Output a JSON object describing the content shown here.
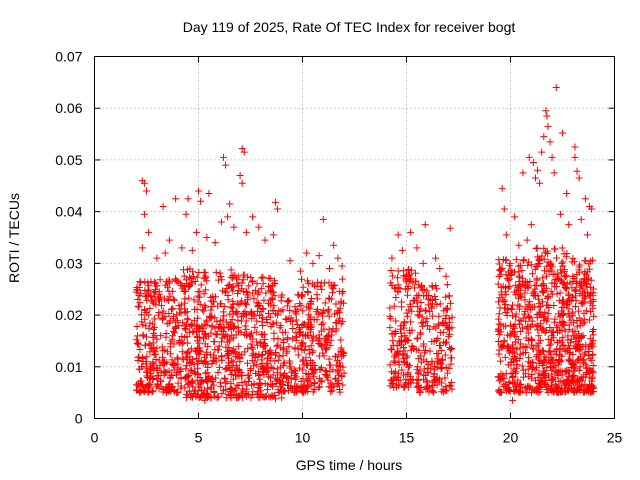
{
  "chart_data": {
    "type": "scatter",
    "title": "Day 119 of 2025, Rate Of TEC Index for receiver bogt",
    "xlabel": "GPS time / hours",
    "ylabel": "ROTI / TECUs",
    "xlim": [
      0,
      25
    ],
    "ylim": [
      0,
      0.07
    ],
    "xticks": [
      0,
      5,
      10,
      15,
      20,
      25
    ],
    "xtick_labels": [
      "0",
      "5",
      "10",
      "15",
      "20",
      "25"
    ],
    "yticks": [
      0,
      0.01,
      0.02,
      0.03,
      0.04,
      0.05,
      0.06,
      0.07
    ],
    "ytick_labels": [
      "0",
      "0.01",
      "0.02",
      "0.03",
      "0.04",
      "0.05",
      "0.06",
      "0.07"
    ],
    "grid": true,
    "marker": "+",
    "color": "#ff0000",
    "series": [
      {
        "name": "ROTI",
        "points": [
          [
            2.3,
            0.046
          ],
          [
            2.4,
            0.0455
          ],
          [
            2.5,
            0.044
          ],
          [
            2.4,
            0.0395
          ],
          [
            3.3,
            0.041
          ],
          [
            3.9,
            0.0425
          ],
          [
            4.5,
            0.0425
          ],
          [
            4.4,
            0.0395
          ],
          [
            5.0,
            0.044
          ],
          [
            5.1,
            0.042
          ],
          [
            5.5,
            0.0435
          ],
          [
            6.2,
            0.0505
          ],
          [
            6.3,
            0.049
          ],
          [
            6.5,
            0.0415
          ],
          [
            7.0,
            0.047
          ],
          [
            7.1,
            0.0455
          ],
          [
            7.1,
            0.0522
          ],
          [
            7.2,
            0.0515
          ],
          [
            8.7,
            0.0418
          ],
          [
            8.8,
            0.0405
          ],
          [
            11.0,
            0.0385
          ],
          [
            11.5,
            0.0335
          ],
          [
            14.6,
            0.0355
          ],
          [
            15.2,
            0.036
          ],
          [
            15.9,
            0.0375
          ],
          [
            16.4,
            0.031
          ],
          [
            17.1,
            0.0368
          ],
          [
            19.6,
            0.0445
          ],
          [
            19.7,
            0.0405
          ],
          [
            20.2,
            0.039
          ],
          [
            20.6,
            0.0475
          ],
          [
            20.9,
            0.0505
          ],
          [
            21.1,
            0.0495
          ],
          [
            21.2,
            0.0465
          ],
          [
            21.3,
            0.048
          ],
          [
            21.4,
            0.0455
          ],
          [
            21.5,
            0.0515
          ],
          [
            21.6,
            0.0545
          ],
          [
            21.7,
            0.0595
          ],
          [
            21.75,
            0.0585
          ],
          [
            21.8,
            0.0565
          ],
          [
            21.9,
            0.0535
          ],
          [
            22.0,
            0.0505
          ],
          [
            22.1,
            0.0475
          ],
          [
            22.2,
            0.064
          ],
          [
            22.5,
            0.0552
          ],
          [
            22.7,
            0.0435
          ],
          [
            23.1,
            0.0505
          ],
          [
            23.2,
            0.0478
          ],
          [
            23.3,
            0.0465
          ],
          [
            23.1,
            0.0525
          ],
          [
            23.6,
            0.0425
          ],
          [
            23.8,
            0.041
          ],
          [
            23.9,
            0.0405
          ],
          [
            20.1,
            0.0035
          ],
          [
            20.3,
            0.0055
          ],
          [
            5.3,
            0.0035
          ],
          [
            5.6,
            0.004
          ],
          [
            8.7,
            0.0038
          ],
          [
            9.0,
            0.004
          ],
          [
            2.3,
            0.033
          ],
          [
            2.6,
            0.036
          ],
          [
            3.0,
            0.031
          ],
          [
            3.4,
            0.032
          ],
          [
            3.6,
            0.0345
          ],
          [
            4.2,
            0.033
          ],
          [
            4.7,
            0.0325
          ],
          [
            4.9,
            0.036
          ],
          [
            5.4,
            0.035
          ],
          [
            5.8,
            0.034
          ],
          [
            6.1,
            0.038
          ],
          [
            6.4,
            0.039
          ],
          [
            6.7,
            0.037
          ],
          [
            7.3,
            0.036
          ],
          [
            7.6,
            0.039
          ],
          [
            7.9,
            0.037
          ],
          [
            8.2,
            0.0345
          ],
          [
            8.6,
            0.0355
          ],
          [
            9.4,
            0.0305
          ],
          [
            9.9,
            0.0285
          ],
          [
            10.2,
            0.032
          ],
          [
            10.5,
            0.03
          ],
          [
            10.8,
            0.0315
          ],
          [
            11.3,
            0.029
          ],
          [
            11.7,
            0.031
          ],
          [
            11.9,
            0.0295
          ],
          [
            14.3,
            0.031
          ],
          [
            14.8,
            0.0325
          ],
          [
            15.5,
            0.033
          ],
          [
            15.8,
            0.03
          ],
          [
            16.6,
            0.029
          ],
          [
            16.9,
            0.0275
          ],
          [
            19.8,
            0.0355
          ],
          [
            20.4,
            0.0335
          ],
          [
            20.8,
            0.0345
          ],
          [
            21.0,
            0.0375
          ],
          [
            22.4,
            0.0395
          ],
          [
            22.8,
            0.0375
          ],
          [
            23.4,
            0.0385
          ],
          [
            23.7,
            0.0355
          ]
        ],
        "clusters": [
          {
            "x": [
              2.0,
              4.2
            ],
            "y": [
              0.005,
              0.027
            ],
            "n": 300
          },
          {
            "x": [
              4.2,
              6.6
            ],
            "y": [
              0.004,
              0.029
            ],
            "n": 360
          },
          {
            "x": [
              6.6,
              8.7
            ],
            "y": [
              0.004,
              0.028
            ],
            "n": 300
          },
          {
            "x": [
              8.7,
              9.9
            ],
            "y": [
              0.005,
              0.024
            ],
            "n": 130
          },
          {
            "x": [
              9.9,
              12.0
            ],
            "y": [
              0.005,
              0.027
            ],
            "n": 250
          },
          {
            "x": [
              14.2,
              15.6
            ],
            "y": [
              0.006,
              0.029
            ],
            "n": 180
          },
          {
            "x": [
              15.6,
              17.2
            ],
            "y": [
              0.005,
              0.026
            ],
            "n": 170
          },
          {
            "x": [
              19.4,
              21.2
            ],
            "y": [
              0.005,
              0.031
            ],
            "n": 290
          },
          {
            "x": [
              21.2,
              22.8
            ],
            "y": [
              0.005,
              0.033
            ],
            "n": 330
          },
          {
            "x": [
              22.8,
              24.0
            ],
            "y": [
              0.005,
              0.031
            ],
            "n": 260
          }
        ]
      }
    ]
  }
}
